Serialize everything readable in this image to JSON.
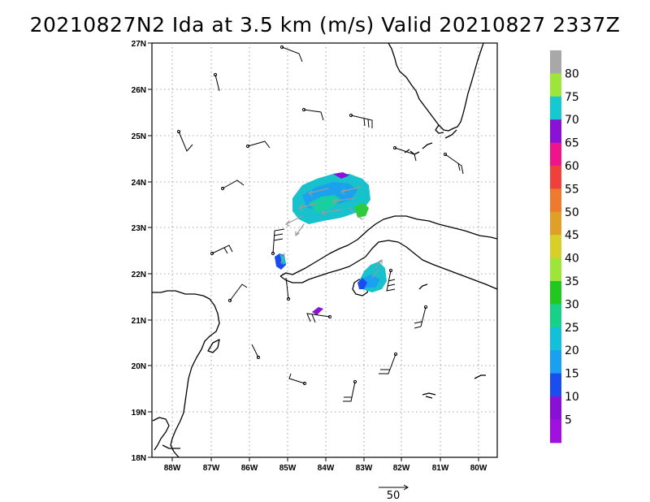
{
  "title": "20210827N2 Ida at 3.5 km (m/s) Valid 20210827  2337Z",
  "lat_labels": [
    "27N",
    "26N",
    "25N",
    "24N",
    "23N",
    "22N",
    "21N",
    "20N",
    "19N",
    "18N"
  ],
  "lon_labels": [
    "88W",
    "87W",
    "86W",
    "85W",
    "84W",
    "83W",
    "82W",
    "81W",
    "80W"
  ],
  "colorbar": {
    "labels": [
      "80",
      "75",
      "70",
      "65",
      "60",
      "55",
      "50",
      "45",
      "40",
      "35",
      "30",
      "25",
      "20",
      "15",
      "10",
      "5"
    ],
    "colors": [
      "#a8a8a8",
      "#9de53a",
      "#16c8d0",
      "#8a12d6",
      "#ee148c",
      "#f0403c",
      "#ee7a2e",
      "#e0a028",
      "#d8d028",
      "#9ee53a",
      "#20c820",
      "#17d18a",
      "#12c0d8",
      "#1aa0f0",
      "#1a4cf0",
      "#8a10d8",
      "#a010e0"
    ]
  },
  "scale": {
    "value_label": "50"
  }
}
